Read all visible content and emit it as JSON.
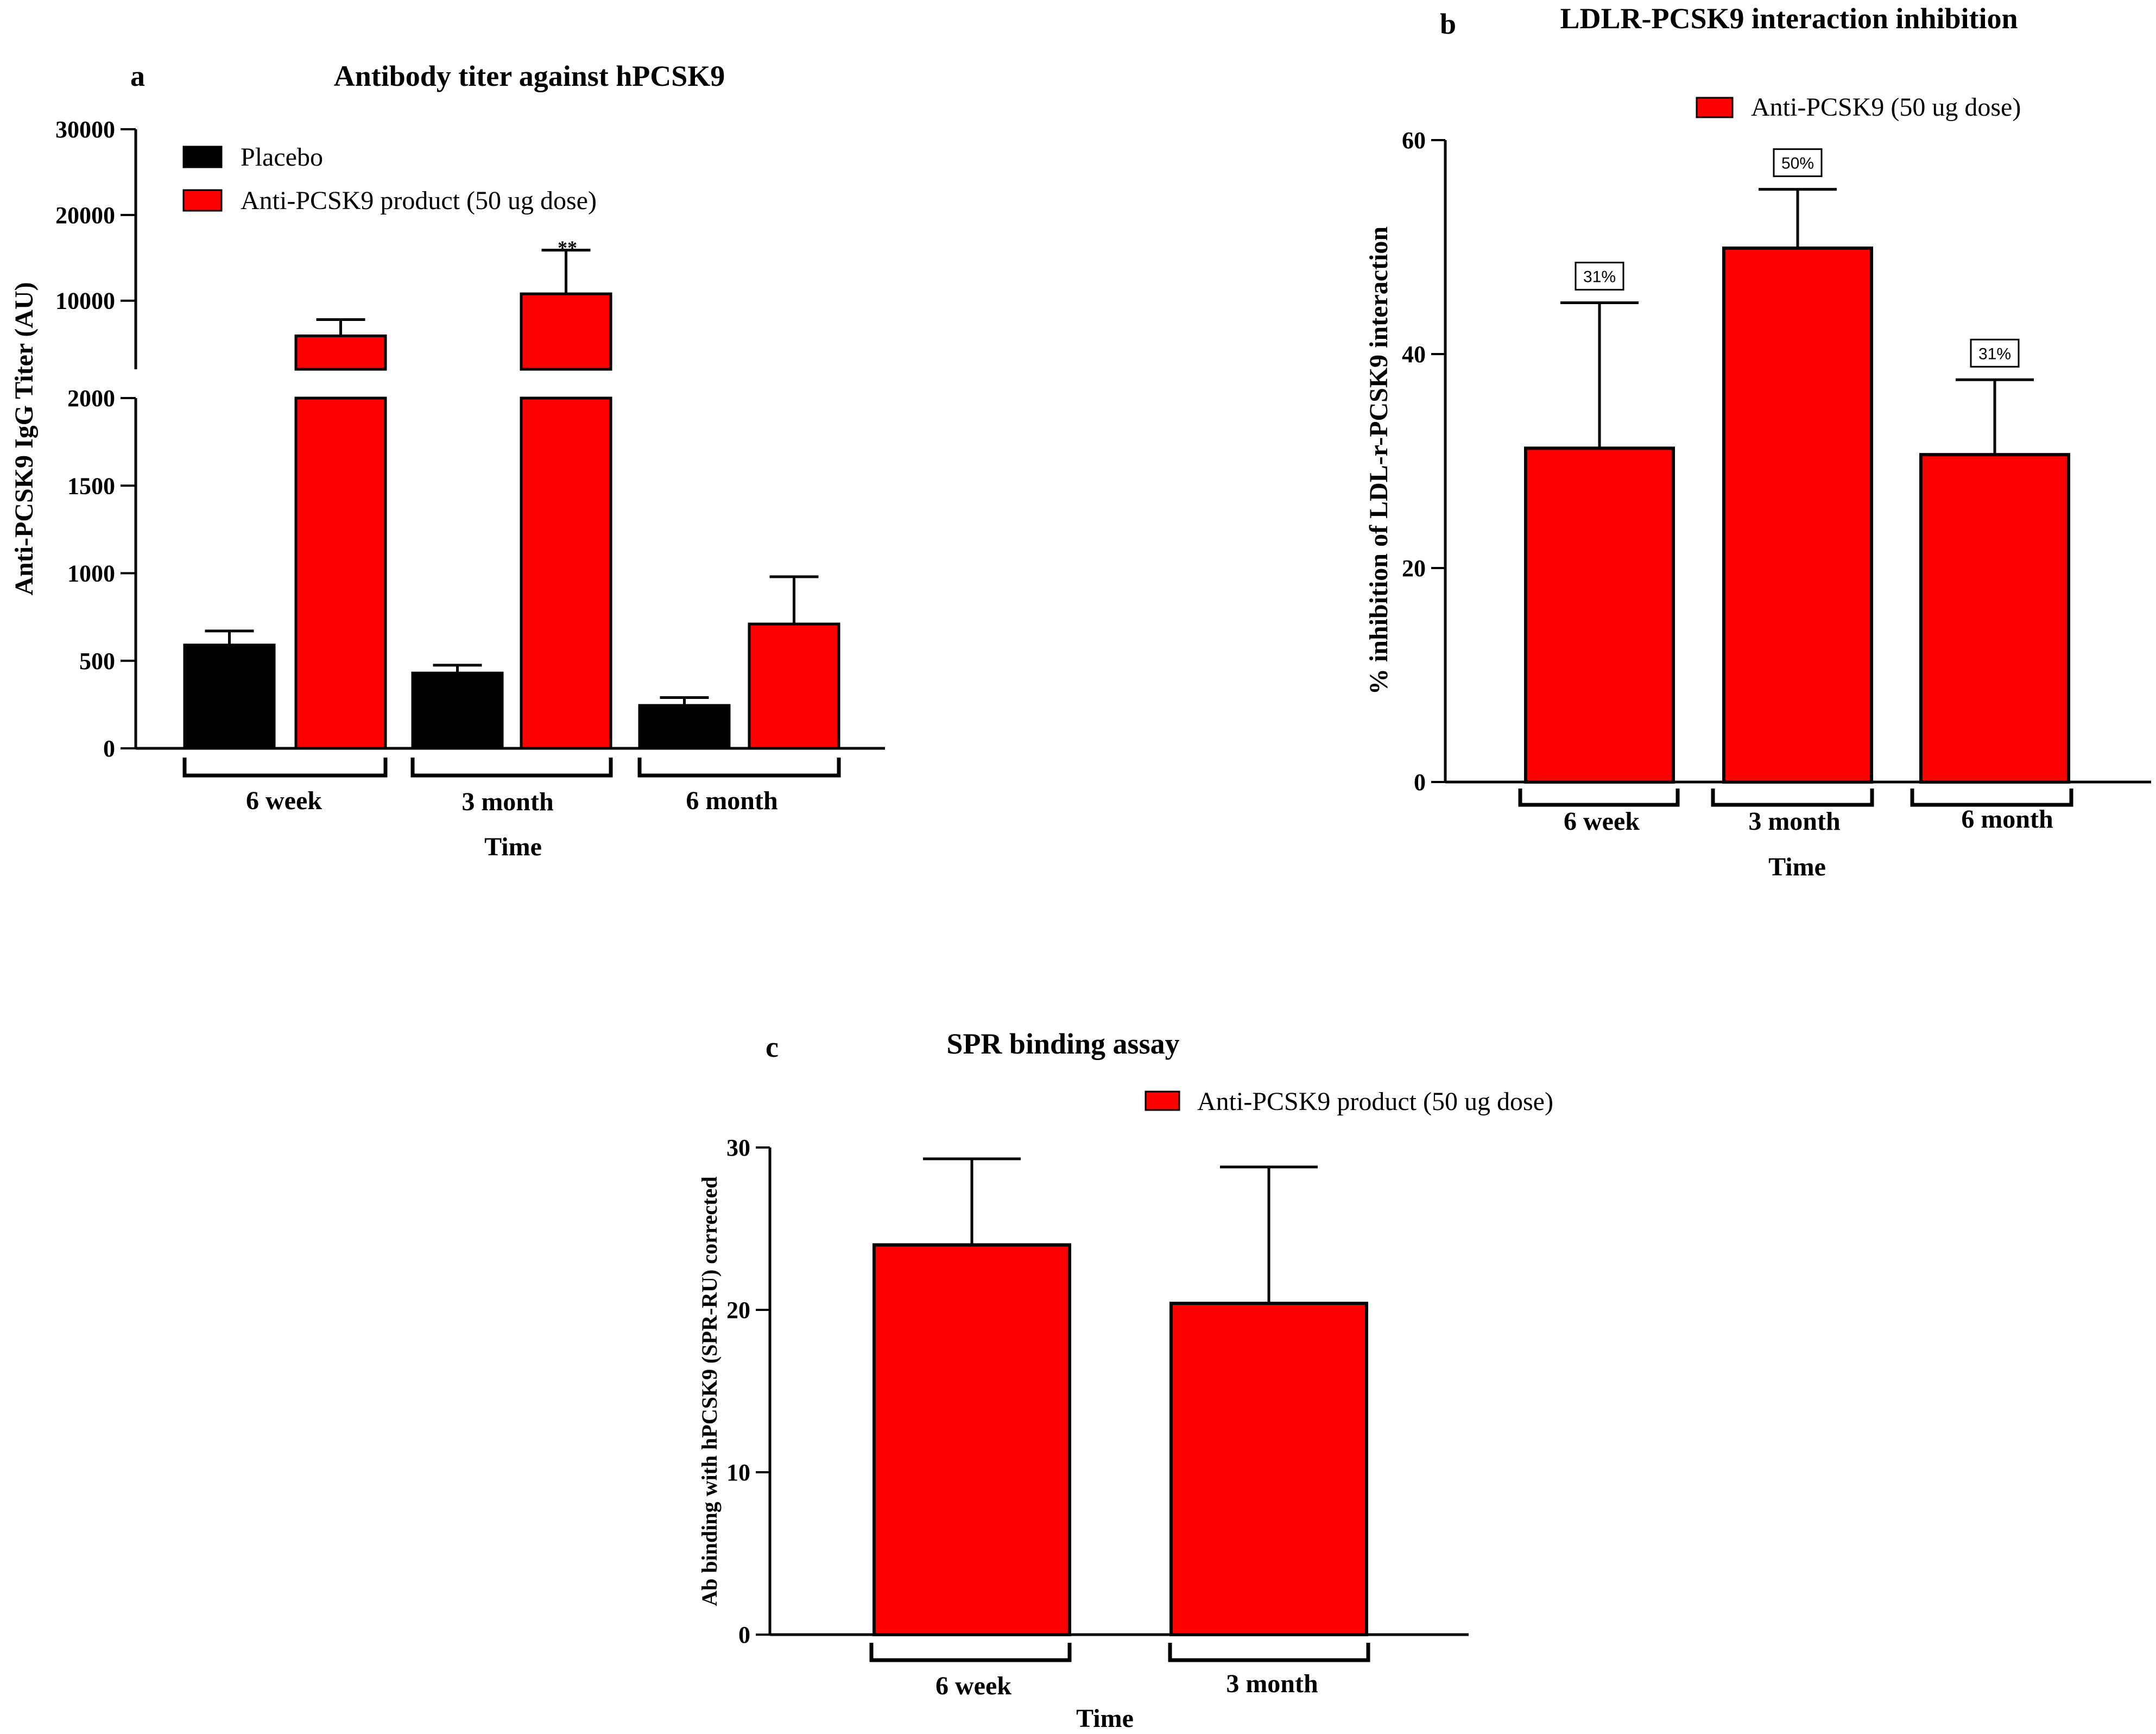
{
  "chart_data": [
    {
      "panel": "a",
      "type": "bar",
      "title": "Antibody titer against hPCSK9",
      "xlabel": "Time",
      "ylabel": "Anti-PCSK9 IgG Titer (AU)",
      "categories": [
        "6 week",
        "3 month",
        "6 month"
      ],
      "axis_break": {
        "lower": [
          0,
          2000
        ],
        "upper": [
          2000,
          30000
        ]
      },
      "yticks_lower": [
        "0",
        "500",
        "1000",
        "1500",
        "2000"
      ],
      "yticks_upper": [
        "10000",
        "20000",
        "30000"
      ],
      "legend_position": "top-left",
      "series": [
        {
          "name": "Placebo",
          "color": "#000000",
          "values": [
            590,
            430,
            245
          ],
          "errors": [
            80,
            45,
            45
          ]
        },
        {
          "name": "Anti-PCSK9 product (50 ug dose)",
          "color": "#ff0000",
          "values": [
            5900,
            10800,
            710
          ],
          "errors": [
            1900,
            5100,
            270
          ]
        }
      ],
      "annotations": [
        {
          "category": "3 month",
          "series": 1,
          "text": "**"
        }
      ]
    },
    {
      "panel": "b",
      "type": "bar",
      "title": "LDLR-PCSK9 interaction inhibition",
      "xlabel": "Time",
      "ylabel": "% inhibition of LDL-r-PCSK9 interaction",
      "categories": [
        "6 week",
        "3 month",
        "6 month"
      ],
      "ylim": [
        0,
        60
      ],
      "yticks": [
        "0",
        "20",
        "40",
        "60"
      ],
      "legend_position": "top-right",
      "series": [
        {
          "name": "Anti-PCSK9 (50 ug dose)",
          "color": "#ff0000",
          "values": [
            31.2,
            49.9,
            30.6
          ],
          "errors": [
            13.6,
            5.5,
            7
          ]
        }
      ],
      "data_labels": [
        "31%",
        "50%",
        "31%"
      ]
    },
    {
      "panel": "c",
      "type": "bar",
      "title": "SPR binding assay",
      "xlabel": "Time",
      "ylabel": "Ab binding with hPCSK9 (SPR-RU) corrected",
      "categories": [
        "6 week",
        "3 month"
      ],
      "ylim": [
        0,
        30
      ],
      "yticks": [
        "0",
        "10",
        "20",
        "30"
      ],
      "legend_position": "top-right",
      "series": [
        {
          "name": "Anti-PCSK9 product (50 ug dose)",
          "color": "#ff0000",
          "values": [
            24,
            20.4
          ],
          "errors": [
            5.3,
            8.4
          ]
        }
      ]
    }
  ]
}
